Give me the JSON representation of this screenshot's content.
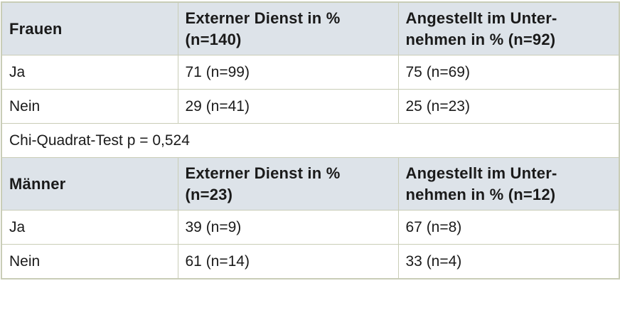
{
  "tables": [
    {
      "group": "Frauen",
      "col2_header": "Externer Dienst in % (n=140)",
      "col3_header": "Angestellt im Unter-\nnehmen in % (n=92)",
      "rows": [
        {
          "label": "Ja",
          "col2": "71 (n=99)",
          "col3": "75 (n=69)"
        },
        {
          "label": "Nein",
          "col2": "29 (n=41)",
          "col3": "25 (n=23)"
        }
      ],
      "note": "Chi-Quadrat-Test p = 0,524"
    },
    {
      "group": "Männer",
      "col2_header": "Externer Dienst in % (n=23)",
      "col3_header": "Angestellt im Unter-\nnehmen in % (n=12)",
      "rows": [
        {
          "label": "Ja",
          "col2": "39 (n=9)",
          "col3": "67 (n=8)"
        },
        {
          "label": "Nein",
          "col2": "61 (n=14)",
          "col3": "33 (n=4)"
        }
      ]
    }
  ]
}
